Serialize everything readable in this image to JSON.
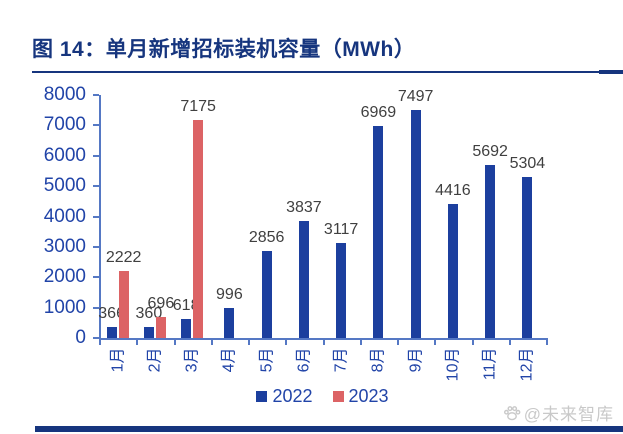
{
  "header": {
    "title": "图 14：单月新增招标装机容量（MWh）"
  },
  "colors": {
    "accent": "#16357E",
    "axis-text": "#2144A8",
    "axis-line": "#5578C4",
    "data-label": "#404040",
    "watermark": "#C9C9C9"
  },
  "chart_data": {
    "type": "bar",
    "title": "图 14：单月新增招标装机容量（MWh）",
    "categories": [
      "1月",
      "2月",
      "3月",
      "4月",
      "5月",
      "6月",
      "7月",
      "8月",
      "9月",
      "10月",
      "11月",
      "12月"
    ],
    "series": [
      {
        "name": "2022",
        "color": "#1C3F9E",
        "values": [
          366,
          360,
          618,
          996,
          2856,
          3837,
          3117,
          6969,
          7497,
          4416,
          5692,
          5304
        ]
      },
      {
        "name": "2023",
        "color": "#DC6365",
        "values": [
          2222,
          696,
          7175,
          null,
          null,
          null,
          null,
          null,
          null,
          null,
          null,
          null
        ]
      }
    ],
    "ylabel": "",
    "xlabel": "",
    "ylim": [
      0,
      8000
    ],
    "y_ticks": [
      0,
      1000,
      2000,
      3000,
      4000,
      5000,
      6000,
      7000,
      8000
    ],
    "grid": false,
    "data_labels": true,
    "legend_position": "bottom"
  },
  "legend": {
    "items": [
      {
        "label": "2022",
        "color": "#1C3F9E"
      },
      {
        "label": "2023",
        "color": "#DC6365"
      }
    ]
  },
  "watermark": {
    "text": "@未来智库",
    "icon": "paw-icon"
  }
}
